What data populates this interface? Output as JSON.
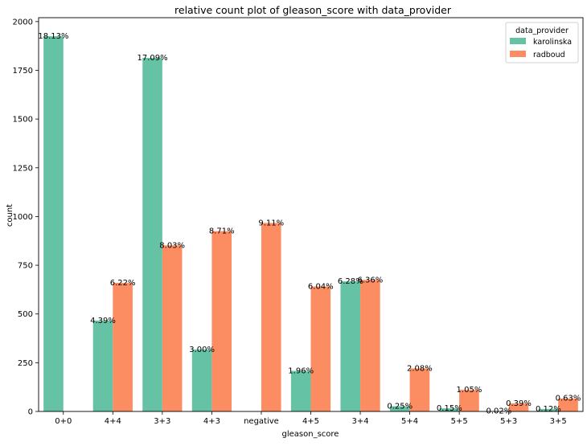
{
  "chart_data": {
    "type": "bar",
    "title": "relative count plot of gleason_score with data_provider",
    "xlabel": "gleason_score",
    "ylabel": "count",
    "ylim": [
      0,
      2020
    ],
    "yticks": [
      0,
      250,
      500,
      750,
      1000,
      1250,
      1500,
      1750,
      2000
    ],
    "categories": [
      "0+0",
      "4+4",
      "3+3",
      "4+3",
      "negative",
      "4+5",
      "3+4",
      "5+4",
      "5+5",
      "5+3",
      "3+5"
    ],
    "legend": {
      "title": "data_provider",
      "placement": "top-right"
    },
    "series": [
      {
        "name": "karolinska",
        "color": "#66c2a5",
        "values": [
          1925,
          466,
          1814,
          318,
          null,
          208,
          667,
          27,
          16,
          2,
          13
        ],
        "labels": [
          "18.13%",
          "4.39%",
          "17.09%",
          "3.00%",
          "",
          "1.96%",
          "6.28%",
          "0.25%",
          "0.15%",
          "0.02%",
          "0.12%"
        ]
      },
      {
        "name": "radboud",
        "color": "#fc8d62",
        "values": [
          null,
          660,
          852,
          925,
          967,
          641,
          675,
          221,
          111,
          41,
          67
        ],
        "labels": [
          "",
          "6.22%",
          "8.03%",
          "8.71%",
          "9.11%",
          "6.04%",
          "6.36%",
          "2.08%",
          "1.05%",
          "0.39%",
          "0.63%"
        ]
      }
    ]
  }
}
